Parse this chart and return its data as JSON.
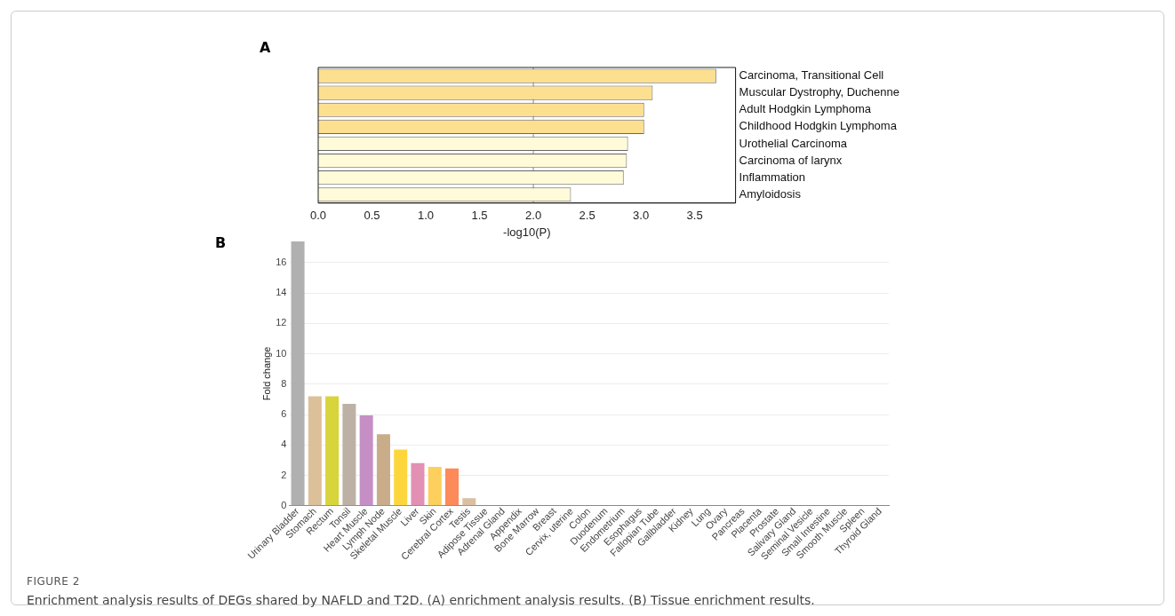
{
  "chart_data": [
    {
      "type": "bar",
      "title": "A",
      "orientation": "horizontal",
      "xlabel": "-log10(P)",
      "categories": [
        "Carcinoma, Transitional Cell",
        "Muscular Dystrophy, Duchenne",
        "Adult Hodgkin Lymphoma",
        "Childhood Hodgkin Lymphoma",
        "Urothelial Carcinoma",
        "Carcinoma of larynx",
        "Inflammation",
        "Amyloidosis"
      ],
      "values": [
        3.7,
        3.11,
        3.03,
        3.03,
        2.88,
        2.87,
        2.84,
        2.35
      ],
      "colors": [
        "#fde08f",
        "#fde08f",
        "#fde08f",
        "#fde08f",
        "#fffbd8",
        "#fffbd8",
        "#fffbd8",
        "#fffbd8"
      ],
      "xlim": [
        0,
        3.88
      ],
      "xticks": [
        {
          "value": 0,
          "label": "0.0"
        },
        0.5,
        {
          "value": 1,
          "label": "1.0"
        },
        1.5,
        {
          "value": 2,
          "label": "2.0"
        },
        2.5,
        {
          "value": 3,
          "label": "3.0"
        },
        3.5
      ],
      "ref_lines": [
        {
          "axis": "x",
          "value": 2,
          "color": "#888888"
        }
      ],
      "grid": false
    },
    {
      "type": "bar",
      "title": "B",
      "ylabel": "Fold change",
      "categories": [
        "Urinary Bladder",
        "Stomach",
        "Rectum",
        "Tonsil",
        "Heart Muscle",
        "Lymph Node",
        "Skeletal Muscle",
        "Liver",
        "Skin",
        "Cerebral Cortex",
        "Testis",
        "Adipose Tissue",
        "Adrenal Gland",
        "Appendix",
        "Bone Marrow",
        "Breast",
        "Cervix, uterine",
        "Colon",
        "Duodenum",
        "Endometrium",
        "Esophagus",
        "Fallopian Tube",
        "Gallbladder",
        "Kidney",
        "Lung",
        "Ovary",
        "Pancreas",
        "Placenta",
        "Prostate",
        "Salivary Gland",
        "Seminal Vesicle",
        "Small Intestine",
        "Smooth Muscle",
        "Spleen",
        "Thyroid Gland"
      ],
      "values": [
        17.4,
        7.2,
        7.2,
        6.7,
        5.95,
        4.7,
        3.7,
        2.8,
        2.55,
        2.45,
        0.5,
        0,
        0,
        0,
        0,
        0,
        0,
        0,
        0,
        0,
        0,
        0,
        0,
        0,
        0,
        0,
        0,
        0,
        0,
        0,
        0,
        0,
        0,
        0,
        0
      ],
      "colors": [
        "#b0b0b0",
        "#dcc09a",
        "#d8d43c",
        "#bdb1a5",
        "#c58fc5",
        "#c9ad8a",
        "#fdd63e",
        "#e290b4",
        "#fdcf5c",
        "#fd8a5a",
        "#d9bfa3",
        "#cccccc",
        "#cccccc",
        "#cccccc",
        "#cccccc",
        "#cccccc",
        "#cccccc",
        "#cccccc",
        "#cccccc",
        "#cccccc",
        "#cccccc",
        "#cccccc",
        "#cccccc",
        "#cccccc",
        "#cccccc",
        "#cccccc",
        "#cccccc",
        "#cccccc",
        "#cccccc",
        "#cccccc",
        "#cccccc",
        "#cccccc",
        "#cccccc",
        "#cccccc",
        "#cccccc"
      ],
      "ylim": [
        0,
        17.4
      ],
      "yticks": [
        0,
        2,
        4,
        6,
        8,
        10,
        12,
        14,
        16
      ],
      "grid": "y",
      "annotations": [
        "FIGURE 2",
        "Enrichment analysis results of DEGs shared by NAFLD and T2D. (A) enrichment analysis results. (B) Tissue enrichment results."
      ]
    }
  ]
}
